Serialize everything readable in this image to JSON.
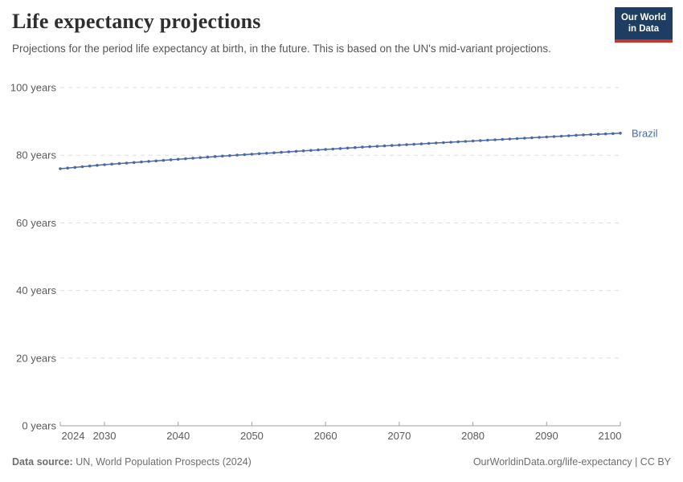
{
  "header": {
    "title": "Life expectancy projections",
    "subtitle": "Projections for the period life expectancy at birth, in the future. This is based on the UN's mid-variant projections.",
    "logo": {
      "line1": "Our World",
      "line2": "in Data",
      "bg_color": "#1d3d63",
      "bar_color": "#c5362c"
    }
  },
  "chart_data": {
    "type": "line",
    "title": "Life expectancy projections",
    "xlabel": "",
    "ylabel": "",
    "xlim": [
      2024,
      2100
    ],
    "ylim": [
      0,
      100
    ],
    "grid": "horizontal-dashed",
    "x_ticks": [
      2024,
      2030,
      2040,
      2050,
      2060,
      2070,
      2080,
      2090,
      2100
    ],
    "y_ticks": [
      0,
      20,
      40,
      60,
      80,
      100
    ],
    "y_tick_suffix": " years",
    "series": [
      {
        "name": "Brazil",
        "color": "#4a69a8",
        "marker": "dot",
        "years": [
          2024,
          2025,
          2026,
          2027,
          2028,
          2029,
          2030,
          2031,
          2032,
          2033,
          2034,
          2035,
          2036,
          2037,
          2038,
          2039,
          2040,
          2041,
          2042,
          2043,
          2044,
          2045,
          2046,
          2047,
          2048,
          2049,
          2050,
          2051,
          2052,
          2053,
          2054,
          2055,
          2056,
          2057,
          2058,
          2059,
          2060,
          2061,
          2062,
          2063,
          2064,
          2065,
          2066,
          2067,
          2068,
          2069,
          2070,
          2071,
          2072,
          2073,
          2074,
          2075,
          2076,
          2077,
          2078,
          2079,
          2080,
          2081,
          2082,
          2083,
          2084,
          2085,
          2086,
          2087,
          2088,
          2089,
          2090,
          2091,
          2092,
          2093,
          2094,
          2095,
          2096,
          2097,
          2098,
          2099,
          2100
        ],
        "values": [
          76,
          76.2,
          76.4,
          76.6,
          76.8,
          77,
          77.2,
          77.36,
          77.52,
          77.68,
          77.84,
          78,
          78.16,
          78.32,
          78.48,
          78.64,
          78.8,
          78.96,
          79.12,
          79.28,
          79.44,
          79.6,
          79.74,
          79.88,
          80.02,
          80.16,
          80.3,
          80.44,
          80.58,
          80.72,
          80.86,
          81,
          81.14,
          81.28,
          81.42,
          81.56,
          81.7,
          81.84,
          81.98,
          82.12,
          82.26,
          82.4,
          82.52,
          82.64,
          82.76,
          82.88,
          83,
          83.12,
          83.24,
          83.36,
          83.48,
          83.6,
          83.72,
          83.84,
          83.96,
          84.08,
          84.2,
          84.32,
          84.44,
          84.56,
          84.68,
          84.8,
          84.92,
          85.04,
          85.16,
          85.28,
          85.4,
          85.52,
          85.64,
          85.76,
          85.88,
          86,
          86.1,
          86.2,
          86.3,
          86.4,
          86.5
        ]
      }
    ],
    "colors": {
      "grid_line": "#dedede",
      "axis_line": "#a1a1a1",
      "tick_label": "#5b5b5b",
      "series_label": "#4a69a8"
    }
  },
  "footer": {
    "datasource_label": "Data source:",
    "datasource_text": " UN, World Population Prospects (2024)",
    "url": "OurWorldinData.org/life-expectancy",
    "license": " | CC BY"
  }
}
